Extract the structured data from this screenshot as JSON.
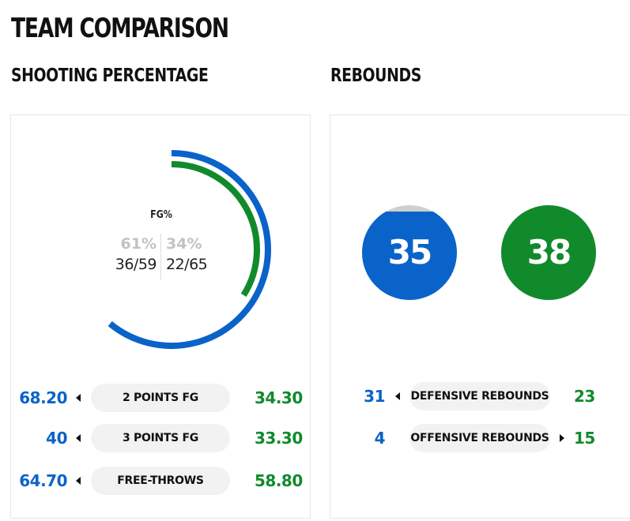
{
  "header": {
    "title": "TEAM COMPARISON"
  },
  "shooting": {
    "title": "SHOOTING PERCENTAGE",
    "fg": {
      "label": "FG%",
      "left_pct": "61%",
      "left_made": "36/59",
      "left_fraction": 0.61,
      "right_pct": "34%",
      "right_made": "22/65",
      "right_fraction": 0.34
    },
    "rows": [
      {
        "left": "68.20",
        "label": "2 POINTS FG",
        "right": "34.30",
        "arrow": "left"
      },
      {
        "left": "40",
        "label": "3 POINTS FG",
        "right": "33.30",
        "arrow": "left"
      },
      {
        "left": "64.70",
        "label": "FREE-THROWS",
        "right": "58.80",
        "arrow": "left"
      }
    ]
  },
  "rebounds": {
    "title": "REBOUNDS",
    "team_left": {
      "total": "35",
      "color": "#0a63c9",
      "fill_fraction": 0.93
    },
    "team_right": {
      "total": "38",
      "color": "#118a2c",
      "fill_fraction": 1.0
    },
    "rows": [
      {
        "left": "31",
        "label": "DEFENSIVE REBOUNDS",
        "right": "23",
        "arrow": "left"
      },
      {
        "left": "4",
        "label": "OFFENSIVE REBOUNDS",
        "right": "15",
        "arrow": "right"
      }
    ]
  },
  "colors": {
    "team_left": "#0a63c9",
    "team_right": "#118a2c",
    "pill_bg": "#f2f2f2",
    "empty_bubble": "#cfcfcf"
  }
}
